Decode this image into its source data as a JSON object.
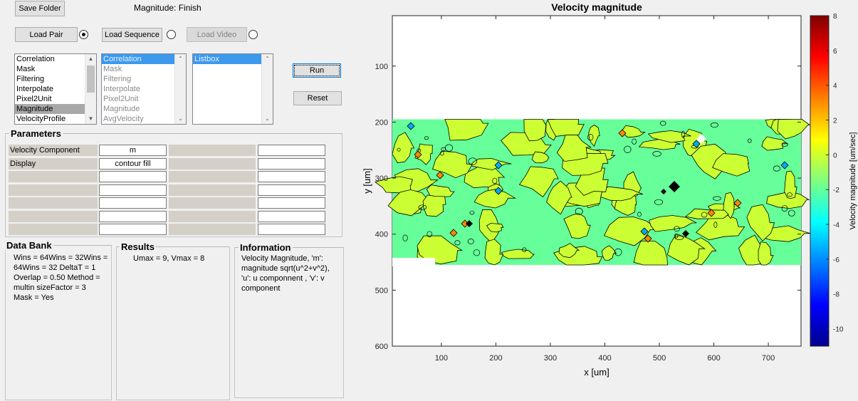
{
  "toolbar": {
    "save_folder": "Save Folder",
    "status_label": "Magnitude",
    "status_value": "Finish",
    "load_pair": "Load Pair",
    "load_sequence": "Load Sequence",
    "load_video": "Load Video",
    "run": "Run",
    "reset": "Reset"
  },
  "lists": {
    "processing_steps": [
      "Correlation",
      "Mask",
      "Filtering",
      "Interpolate",
      "Pixel2Unit",
      "Magnitude",
      "VelocityProfile"
    ],
    "pipeline": [
      "Correlation",
      "Mask",
      "Filtering",
      "Interpolate",
      "Pixel2Unit",
      "Magnitude",
      "AvgVelocity"
    ],
    "listbox": [
      "Listbox"
    ]
  },
  "parameters": {
    "title": "Parameters",
    "rows": [
      {
        "label": "Velocity Component",
        "value": "m",
        "label2": "",
        "value2": ""
      },
      {
        "label": "Display",
        "value": "contour fill",
        "label2": "",
        "value2": ""
      },
      {
        "label": "",
        "value": "",
        "label2": "",
        "value2": ""
      },
      {
        "label": "",
        "value": "",
        "label2": "",
        "value2": ""
      },
      {
        "label": "",
        "value": "",
        "label2": "",
        "value2": ""
      },
      {
        "label": "",
        "value": "",
        "label2": "",
        "value2": ""
      },
      {
        "label": "",
        "value": "",
        "label2": "",
        "value2": ""
      }
    ]
  },
  "data_bank": {
    "title": "Data Bank",
    "lines": [
      "Wins = 64Wins = 32Wins =",
      "64Wins = 32  DeltaT = 1",
      "Overlap = 0.50  Method =",
      "multin  sizeFactor = 3",
      "Mask = Yes"
    ]
  },
  "results": {
    "title": "Results",
    "lines": [
      "Umax = 9, Vmax = 8"
    ]
  },
  "information": {
    "title": "Information",
    "lines": [
      "Velocity Magnitude, 'm':",
      "magnitude sqrt(u^2+v^2),",
      "'u': u componnent , 'v': v",
      "component"
    ]
  },
  "chart_data": {
    "type": "heatmap",
    "title": "Velocity magnitude",
    "xlabel": "x [um]",
    "ylabel": "y [um]",
    "xlim": [
      10,
      760
    ],
    "ylim": [
      600,
      10
    ],
    "xticks": [
      100,
      200,
      300,
      400,
      500,
      600,
      700
    ],
    "yticks": [
      100,
      200,
      300,
      400,
      500,
      600
    ],
    "data_region_y": [
      195,
      455
    ],
    "colorbar": {
      "label": "Velocity magnitude [um/sec]",
      "ticks": [
        8,
        6,
        4,
        2,
        0,
        -2,
        -4,
        -6,
        -8,
        -10
      ],
      "range": [
        -11,
        8
      ],
      "colormap": "jet"
    },
    "palette": {
      "green": "#66ff99",
      "yellow": "#ccff33",
      "orange": "#ff8800",
      "blue": "#00aaff",
      "black": "#000000"
    }
  }
}
